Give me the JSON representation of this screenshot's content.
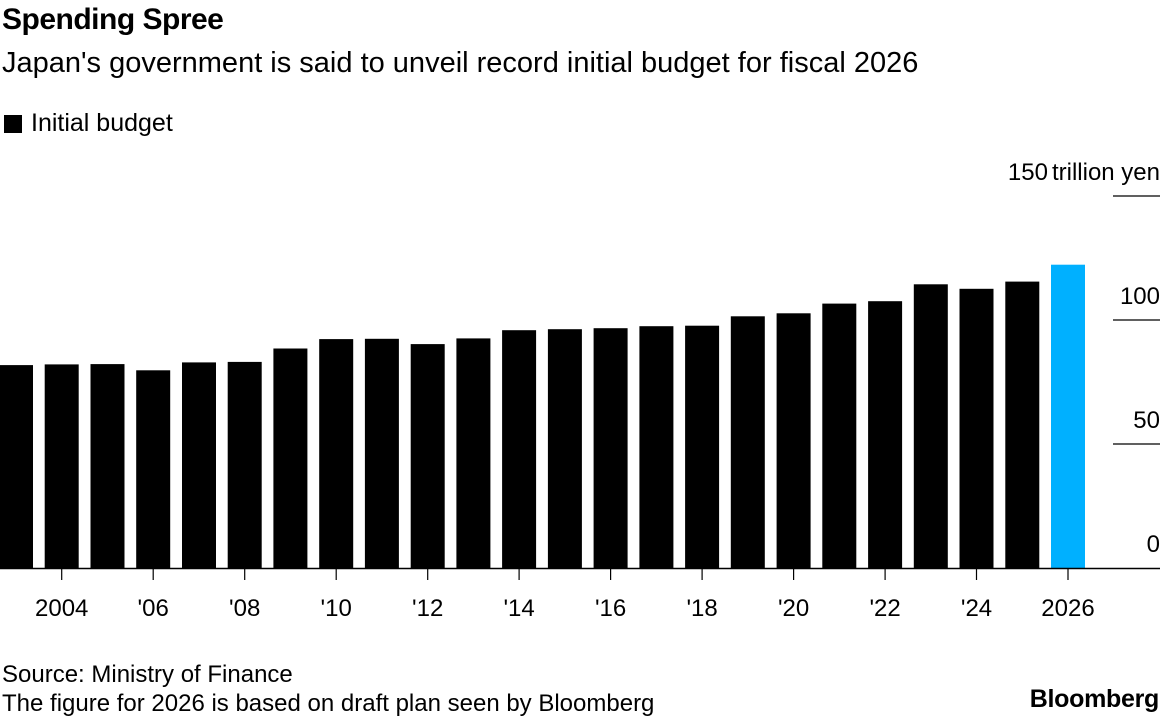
{
  "title": "Spending Spree",
  "subtitle": "Japan's government is said to unveil record initial budget for fiscal 2026",
  "legend": {
    "label": "Initial budget",
    "color": "#000000"
  },
  "source": "Source: Ministry of Finance",
  "note": "The figure for 2026 is based on draft plan seen by Bloomberg",
  "brand": "Bloomberg",
  "chart_data": {
    "type": "bar",
    "title": "Spending Spree",
    "subtitle": "Japan's government is said to unveil record initial budget for fiscal 2026",
    "xlabel": "",
    "ylabel": "trillion yen",
    "ylim": [
      0,
      150
    ],
    "y_ticks": [
      {
        "value": 0,
        "label": "0"
      },
      {
        "value": 50,
        "label": "50"
      },
      {
        "value": 100,
        "label": "100"
      },
      {
        "value": 150,
        "label": "150",
        "unit": "trillion yen"
      }
    ],
    "categories": [
      2003,
      2004,
      2005,
      2006,
      2007,
      2008,
      2009,
      2010,
      2011,
      2012,
      2013,
      2014,
      2015,
      2016,
      2017,
      2018,
      2019,
      2020,
      2021,
      2022,
      2023,
      2024,
      2025,
      2026
    ],
    "x_ticks": [
      {
        "year": 2004,
        "label": "2004"
      },
      {
        "year": 2006,
        "label": "'06"
      },
      {
        "year": 2008,
        "label": "'08"
      },
      {
        "year": 2010,
        "label": "'10"
      },
      {
        "year": 2012,
        "label": "'12"
      },
      {
        "year": 2014,
        "label": "'14"
      },
      {
        "year": 2016,
        "label": "'16"
      },
      {
        "year": 2018,
        "label": "'18"
      },
      {
        "year": 2020,
        "label": "'20"
      },
      {
        "year": 2022,
        "label": "'22"
      },
      {
        "year": 2024,
        "label": "'24"
      },
      {
        "year": 2026,
        "label": "2026"
      }
    ],
    "series": [
      {
        "name": "Initial budget",
        "values": [
          81.8,
          82.1,
          82.2,
          79.7,
          82.9,
          83.1,
          88.5,
          92.3,
          92.4,
          90.3,
          92.6,
          95.9,
          96.3,
          96.7,
          97.5,
          97.7,
          101.5,
          102.7,
          106.6,
          107.6,
          114.4,
          112.6,
          115.5,
          122.3
        ]
      }
    ],
    "highlight": {
      "category": 2026,
      "color": "#00b0ff",
      "note": "draft plan"
    },
    "bar_color": "#000000",
    "grid": false,
    "legend_position": "top-left"
  }
}
